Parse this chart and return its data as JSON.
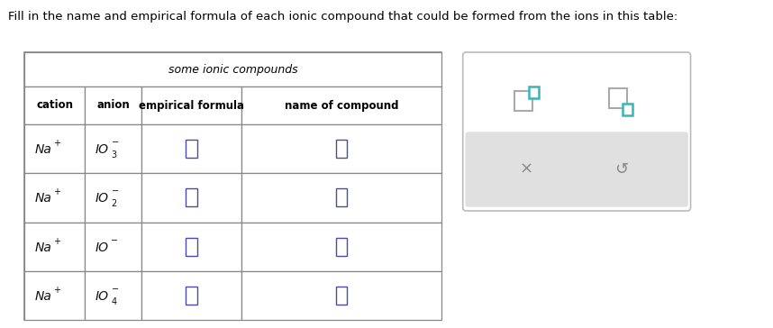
{
  "title_text": "Fill in the name and empirical formula of each ionic compound that could be formed from the ions in this table:",
  "table_title": "some ionic compounds",
  "col_headers": [
    "cation",
    "anion",
    "empirical formula",
    "name of compound"
  ],
  "anion_labels": [
    {
      "base": "IO",
      "sub": "3",
      "sup": "−"
    },
    {
      "base": "IO",
      "sub": "2",
      "sup": "−"
    },
    {
      "base": "IO",
      "sub": "",
      "sup": "−"
    },
    {
      "base": "IO",
      "sub": "4",
      "sup": "−"
    }
  ],
  "bg_color": "#ffffff",
  "table_border_color": "#888888",
  "icon_color_teal": "#3ab5b5",
  "icon_color_grey": "#aaaaaa",
  "input_box_border": "#4a4aaa",
  "side_panel_border": "#bbbbbb",
  "grey_bar_color": "#e0e0e0",
  "symbol_color": "#888888"
}
